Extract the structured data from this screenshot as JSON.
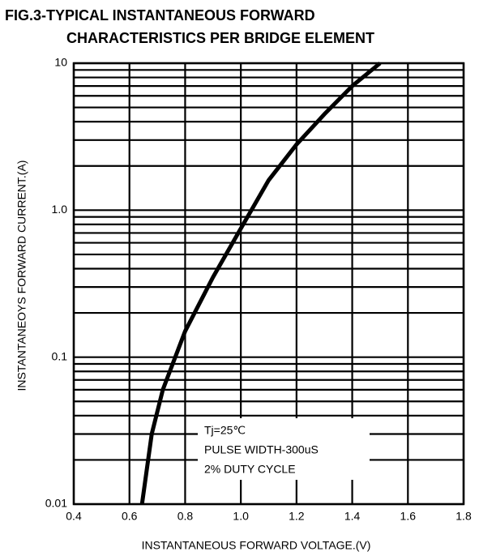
{
  "chart_data": {
    "type": "line",
    "title": [
      "FIG.3-TYPICAL INSTANTANEOUS FORWARD",
      "CHARACTERISTICS PER BRIDGE ELEMENT"
    ],
    "xlabel": "INSTANTANEOUS FORWARD VOLTAGE.(V)",
    "ylabel": "INSTANTANEOYS FORWARD CURRENT.(A)",
    "annotations": [
      "Tj=25℃",
      "PULSE WIDTH-300uS",
      "2% DUTY CYCLE"
    ],
    "log_y": true,
    "grid": true,
    "color": "#000000",
    "xlim": [
      0.4,
      1.8
    ],
    "ylim": [
      0.01,
      10
    ],
    "xticks": [
      0.4,
      0.6,
      0.8,
      {
        "value": 1,
        "label": "1.0"
      },
      1.2,
      1.4,
      1.6,
      1.8
    ],
    "yticks": [
      0.01,
      0.1,
      {
        "value": 1,
        "label": "1.0"
      },
      10
    ],
    "minor_yticks": [
      0.02,
      0.03,
      0.04,
      0.05,
      0.06,
      0.07,
      0.08,
      0.09,
      0.2,
      0.3,
      0.4,
      0.5,
      0.6,
      0.7,
      0.8,
      0.9,
      2,
      3,
      4,
      5,
      6,
      7,
      8,
      9
    ],
    "x": [
      0.645,
      0.68,
      0.72,
      0.8,
      0.9,
      1.0,
      1.1,
      1.2,
      1.3,
      1.4,
      1.5
    ],
    "values": [
      0.01,
      0.03,
      0.06,
      0.15,
      0.35,
      0.75,
      1.6,
      2.8,
      4.5,
      7,
      10
    ]
  }
}
